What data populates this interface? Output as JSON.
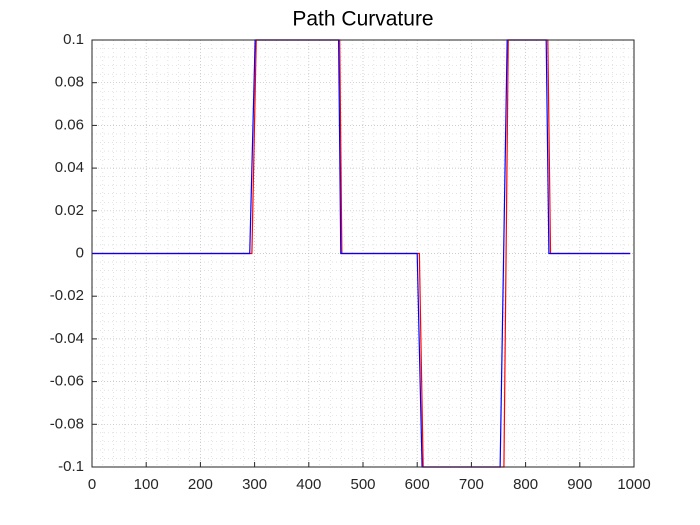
{
  "chart_data": {
    "type": "line",
    "title": "Path Curvature",
    "series": [
      {
        "color": "#ff0000",
        "x": [
          0,
          295,
          303,
          457,
          461,
          604,
          611,
          760,
          768,
          841,
          846,
          993
        ],
        "values": [
          0,
          0,
          0.1,
          0.1,
          0,
          0,
          -0.1,
          -0.1,
          0.1,
          0.1,
          0,
          0
        ]
      },
      {
        "color": "#0000ff",
        "x": [
          0,
          291,
          301,
          455,
          459,
          600,
          609,
          753,
          766,
          838,
          843,
          993
        ],
        "values": [
          0,
          0,
          0.1,
          0.1,
          0,
          0,
          -0.1,
          -0.1,
          0.1,
          0.1,
          0,
          0
        ]
      }
    ],
    "xlim": [
      0,
      1000
    ],
    "xticks": [
      0,
      100,
      200,
      300,
      400,
      500,
      600,
      700,
      800,
      900,
      1000
    ],
    "ylim": [
      -0.1,
      0.1
    ],
    "yticks": [
      -0.1,
      -0.08,
      -0.06,
      -0.04,
      -0.02,
      0,
      0.02,
      0.04,
      0.06,
      0.08,
      0.1
    ],
    "grid": true,
    "minor_grid": true
  }
}
